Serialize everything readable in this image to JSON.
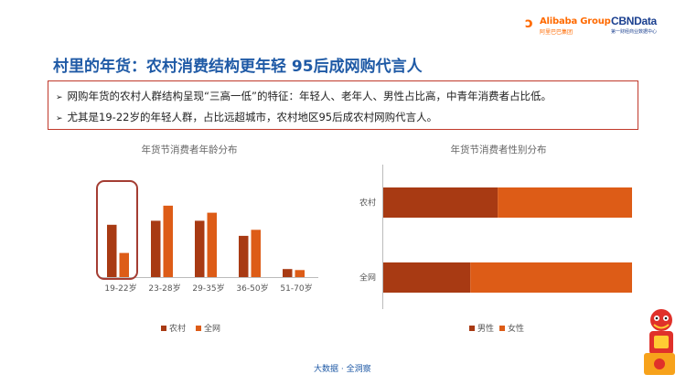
{
  "logos": {
    "alibaba_word": "Alibaba Group",
    "alibaba_cn": "阿里巴巴集团",
    "cbn_word": "CBNData",
    "cbn_sub": "第一财经商业数据中心"
  },
  "title": "村里的年货：农村消费结构更年轻  95后成网购代言人",
  "notes": [
    "网购年货的农村人群结构呈现“三高一低”的特征：年轻人、老年人、男性占比高，中青年消费者占比低。",
    "尤其是19-22岁的年轻人群，占比远超城市，农村地区95后成农村网购代言人。"
  ],
  "footer": "大数据 · 全洞察",
  "colors": {
    "rural": "#a83a13",
    "national": "#dd5c17",
    "highlight": "#a43d33",
    "axis": "#bbbbbb",
    "title_blue": "#1f5aa6"
  },
  "chart_data": [
    {
      "type": "bar",
      "title": "年货节消费者年龄分布",
      "categories": [
        "19-22岁",
        "23-28岁",
        "29-35岁",
        "36-50岁",
        "51-70岁"
      ],
      "series": [
        {
          "name": "农村",
          "values": [
            0.52,
            0.56,
            0.56,
            0.41,
            0.08
          ]
        },
        {
          "name": "全网",
          "values": [
            0.24,
            0.71,
            0.64,
            0.47,
            0.07
          ]
        }
      ],
      "ylim": [
        0,
        1
      ],
      "highlight_category": "19-22岁",
      "legend": "bottom",
      "grid": false
    },
    {
      "type": "bar",
      "orientation": "horizontal",
      "stacked": true,
      "normalized": true,
      "title": "年货节消费者性别分布",
      "categories": [
        "农村",
        "全网"
      ],
      "series": [
        {
          "name": "男性",
          "values": [
            46,
            35
          ]
        },
        {
          "name": "女性",
          "values": [
            54,
            65
          ]
        }
      ],
      "xlim": [
        0,
        100
      ],
      "legend": "bottom",
      "grid": false
    }
  ]
}
